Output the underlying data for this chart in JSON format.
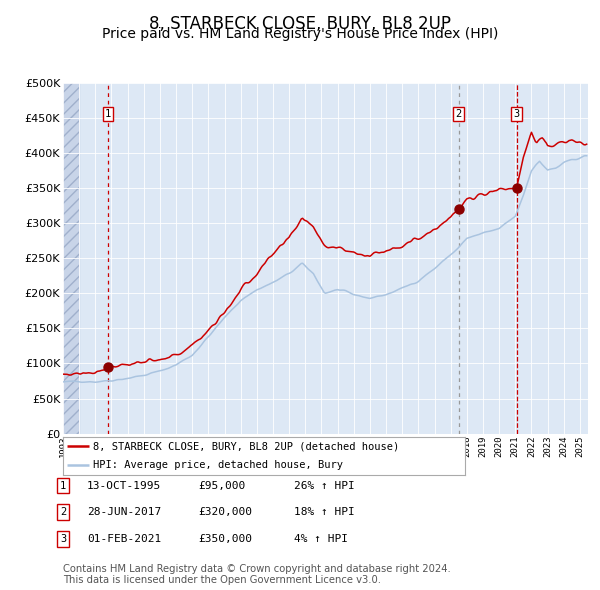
{
  "title": "8, STARBECK CLOSE, BURY, BL8 2UP",
  "subtitle": "Price paid vs. HM Land Registry's House Price Index (HPI)",
  "title_fontsize": 12,
  "subtitle_fontsize": 10,
  "ytick_values": [
    0,
    50000,
    100000,
    150000,
    200000,
    250000,
    300000,
    350000,
    400000,
    450000,
    500000
  ],
  "ylim": [
    0,
    500000
  ],
  "xlim_start": 1993.0,
  "xlim_end": 2025.5,
  "hpi_line_color": "#aac4e0",
  "price_line_color": "#cc0000",
  "marker_color": "#8b0000",
  "plot_bg_color": "#dde8f5",
  "legend_line1": "8, STARBECK CLOSE, BURY, BL8 2UP (detached house)",
  "legend_line2": "HPI: Average price, detached house, Bury",
  "table_entries": [
    {
      "num": "1",
      "date": "13-OCT-1995",
      "price": "£95,000",
      "change": "26% ↑ HPI"
    },
    {
      "num": "2",
      "date": "28-JUN-2017",
      "price": "£320,000",
      "change": "18% ↑ HPI"
    },
    {
      "num": "3",
      "date": "01-FEB-2021",
      "price": "£350,000",
      "change": "4% ↑ HPI"
    }
  ],
  "sale_dates": [
    1995.79,
    2017.49,
    2021.08
  ],
  "sale_prices": [
    95000,
    320000,
    350000
  ],
  "vline_styles": [
    "dotted",
    "dotted",
    "dashed"
  ],
  "vline_colors": [
    "#cc0000",
    "#888888",
    "#cc0000"
  ],
  "footnote": "Contains HM Land Registry data © Crown copyright and database right 2024.\nThis data is licensed under the Open Government Licence v3.0.",
  "footnote_fontsize": 7.2
}
